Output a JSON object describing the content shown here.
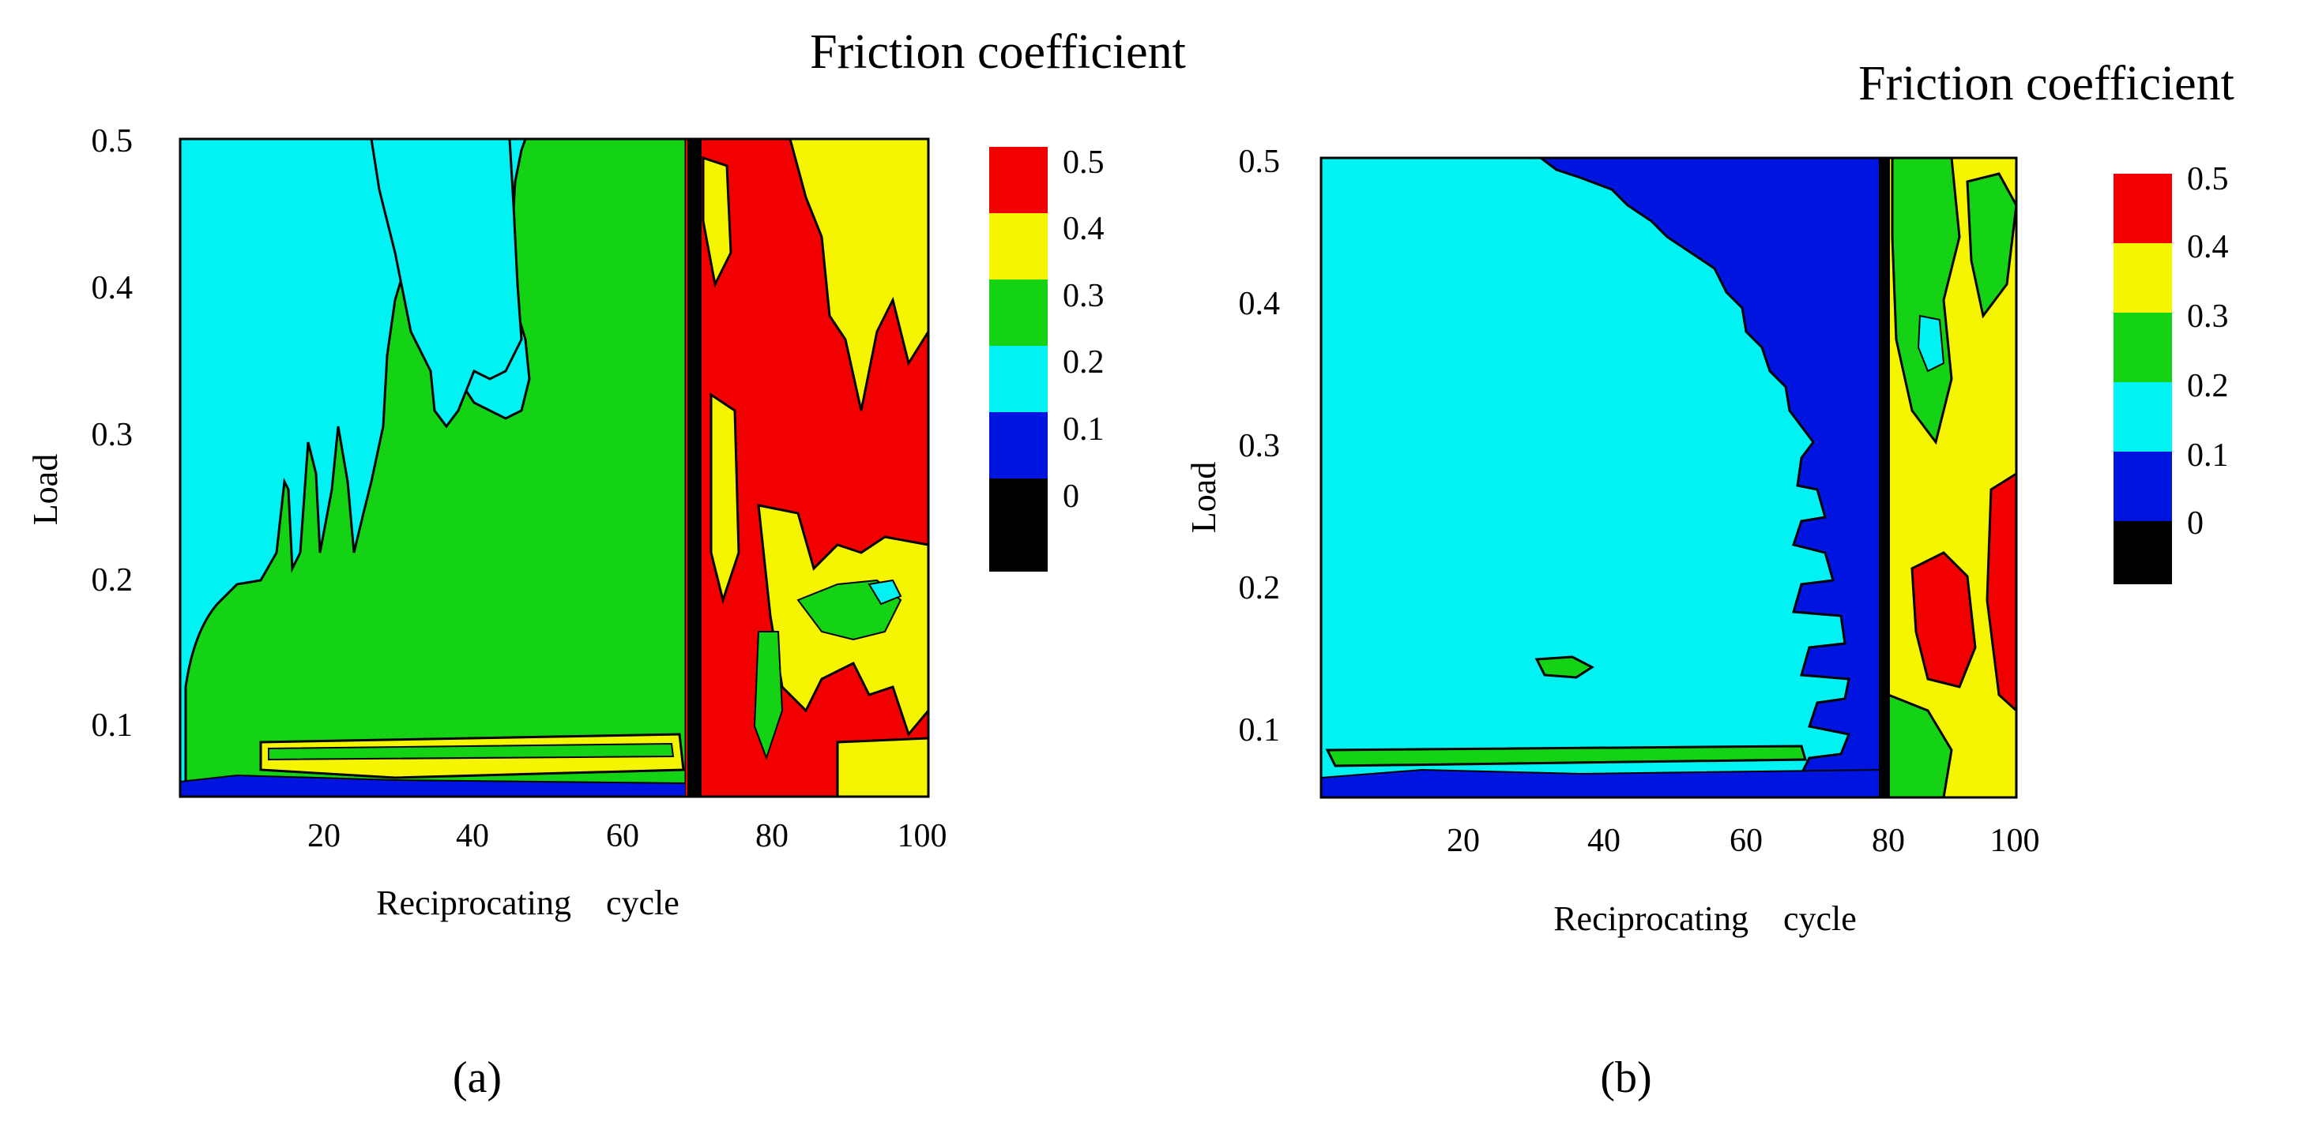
{
  "figure": {
    "panels": [
      {
        "label": "(a)"
      },
      {
        "label": "(b)"
      }
    ]
  },
  "colors": {
    "level_0": "#000000",
    "level_0_1": "#0014e0",
    "level_0_2": "#00f2f2",
    "level_0_3": "#14d214",
    "level_0_4": "#f5f500",
    "level_0_5": "#f20000",
    "contour_line": "#000000"
  },
  "chart_data": [
    {
      "type": "heatmap",
      "title": "Friction coefficient",
      "xlabel": "Reciprocating    cycle",
      "ylabel": "Load",
      "xlim": [
        0,
        100
      ],
      "ylim": [
        0.05,
        0.5
      ],
      "x_ticks": [
        "20",
        "40",
        "60",
        "80",
        "100"
      ],
      "x_tick_values": [
        20,
        40,
        60,
        80,
        100
      ],
      "y_ticks": [
        "0.1",
        "0.2",
        "0.3",
        "0.4",
        "0.5"
      ],
      "y_tick_values": [
        0.1,
        0.2,
        0.3,
        0.4,
        0.5
      ],
      "colorbar": {
        "labels": [
          "0.5",
          "0.4",
          "0.3",
          "0.2",
          "0.1",
          "0"
        ],
        "levels": [
          0.5,
          0.4,
          0.3,
          0.2,
          0.1,
          0
        ]
      },
      "transition_cycle": 68,
      "regions": [
        {
          "x_range": [
            0,
            68
          ],
          "typical_friction": "0.2-0.3 (blue-green at low load)"
        },
        {
          "x_range": [
            68,
            100
          ],
          "typical_friction": "0.4-0.5"
        }
      ],
      "label": "(a)"
    },
    {
      "type": "heatmap",
      "title": "Friction coefficient",
      "xlabel": "Reciprocating    cycle",
      "ylabel": "Load",
      "xlim": [
        0,
        100
      ],
      "ylim": [
        0.05,
        0.5
      ],
      "x_ticks": [
        "20",
        "40",
        "60",
        "80",
        "100"
      ],
      "x_tick_values": [
        20,
        40,
        60,
        80,
        100
      ],
      "y_ticks": [
        "0.1",
        "0.2",
        "0.3",
        "0.4",
        "0.5"
      ],
      "y_tick_values": [
        0.1,
        0.2,
        0.3,
        0.4,
        0.5
      ],
      "colorbar": {
        "labels": [
          "0.5",
          "0.4",
          "0.3",
          "0.2",
          "0.1",
          "0"
        ],
        "levels": [
          0.5,
          0.4,
          0.3,
          0.2,
          0.1,
          0
        ]
      },
      "transition_cycle": 76,
      "regions": [
        {
          "x_range": [
            0,
            76
          ],
          "typical_friction": "0.1-0.2"
        },
        {
          "x_range": [
            76,
            100
          ],
          "typical_friction": "0.3-0.5"
        }
      ],
      "label": "(b)"
    }
  ]
}
